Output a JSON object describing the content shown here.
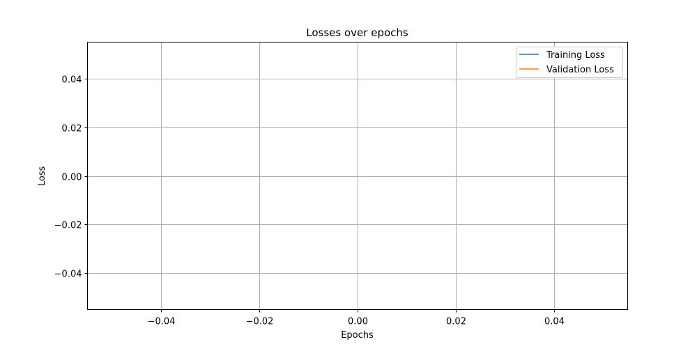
{
  "chart_data": {
    "type": "line",
    "title": "Losses over epochs",
    "xlabel": "Epochs",
    "ylabel": "Loss",
    "xlim": [
      -0.055,
      0.055
    ],
    "ylim": [
      -0.055,
      0.055
    ],
    "x_ticks": [
      -0.04,
      -0.02,
      0.0,
      0.02,
      0.04
    ],
    "x_tick_labels": [
      "−0.04",
      "−0.02",
      "0.00",
      "0.02",
      "0.04"
    ],
    "y_ticks": [
      0.04,
      0.02,
      0.0,
      -0.02,
      -0.04
    ],
    "y_tick_labels": [
      "0.04",
      "0.02",
      "0.00",
      "−0.02",
      "−0.04"
    ],
    "grid": true,
    "legend_position": "top-right",
    "series": [
      {
        "name": "Training Loss",
        "color": "#1f77b4",
        "x": [],
        "y": []
      },
      {
        "name": "Validation Loss",
        "color": "#ff7f0e",
        "x": [],
        "y": []
      }
    ]
  }
}
